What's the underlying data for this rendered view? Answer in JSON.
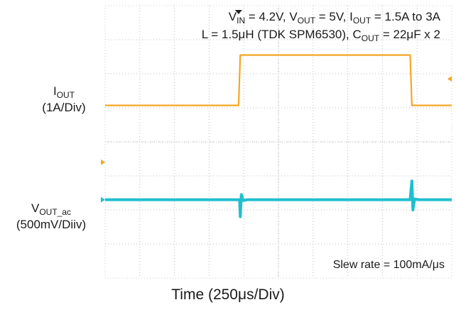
{
  "chart_data": {
    "type": "line",
    "title_lines": [
      {
        "parts": [
          [
            "V",
            ""
          ],
          [
            "IN",
            "sub"
          ],
          [
            " = 4.2V, V",
            ""
          ],
          [
            "OUT",
            "sub"
          ],
          [
            " = 5V, I",
            ""
          ],
          [
            "OUT",
            "sub"
          ],
          [
            " = 1.5A to 3A",
            ""
          ]
        ]
      },
      {
        "parts": [
          [
            "L = 1.5μH (TDK SPM6530), C",
            ""
          ],
          [
            "OUT",
            "sub"
          ],
          [
            " = 22μF x 2",
            ""
          ]
        ]
      }
    ],
    "xlabel": "Time (250μs/Div)",
    "x_divisions": 10,
    "y_divisions": 8,
    "annotation": "Slew rate = 100mA/μs",
    "series": [
      {
        "name_main": "I",
        "name_sub": "OUT",
        "scale": "(1A/Div)",
        "color": "#f5a623",
        "x": [
          0,
          3.85,
          3.9,
          8.8,
          8.85,
          10
        ],
        "y": [
          2.93,
          2.93,
          1.45,
          1.45,
          2.93,
          2.93
        ]
      },
      {
        "name_main": "V",
        "name_sub": "OUT_ac",
        "scale": "(500mV/Diiv)",
        "color": "#1fbfcf",
        "x": [
          0,
          3.88,
          3.9,
          3.93,
          3.98,
          4.1,
          8.8,
          8.85,
          8.88,
          8.93,
          9.05,
          10
        ],
        "y": [
          5.7,
          5.7,
          6.2,
          5.55,
          5.72,
          5.7,
          5.7,
          5.15,
          6.0,
          5.68,
          5.7,
          5.7
        ]
      }
    ]
  }
}
